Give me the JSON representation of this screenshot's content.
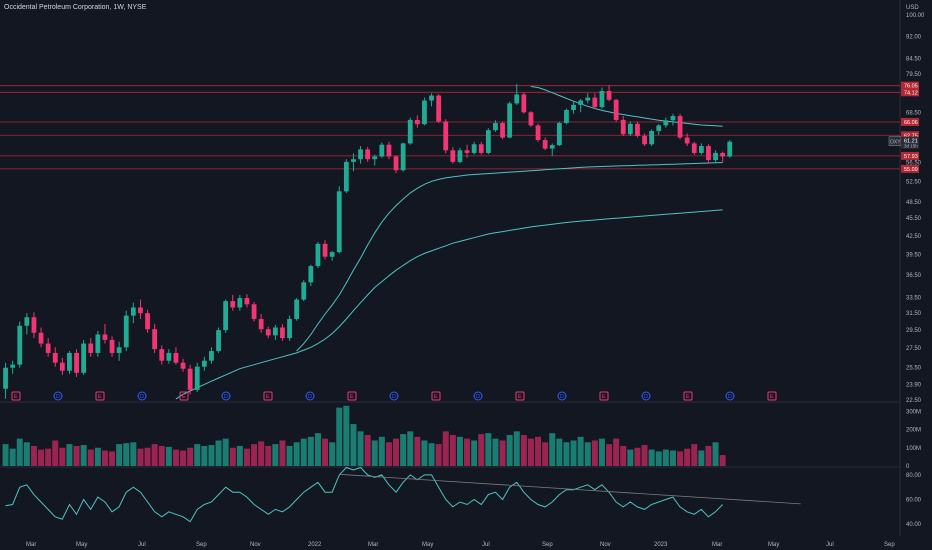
{
  "title": "Occidental Petroleum Corporation, 1W, NYSE",
  "currency": "USD",
  "colors": {
    "bg": "#131722",
    "up": "#22ab94",
    "down": "#f23674",
    "ma": "#4fc3c3",
    "rsi": "#4fc3c3",
    "level": "#b22833",
    "grid": "#1f2430",
    "text": "#b2b5be",
    "trendline": "#787b86"
  },
  "price_ticks": [
    "100.00",
    "92.00",
    "84.50",
    "79.50",
    "68.50",
    "52.50",
    "48.50",
    "45.50",
    "42.50",
    "39.50",
    "36.50",
    "33.50",
    "31.50",
    "29.50",
    "27.50",
    "25.50",
    "23.90",
    "22.50"
  ],
  "price_tags": [
    {
      "value": 76.05,
      "label": "76.05",
      "kind": "level"
    },
    {
      "value": 74.12,
      "label": "74.12",
      "kind": "level"
    },
    {
      "value": 66.06,
      "label": "66.06",
      "kind": "level"
    },
    {
      "value": 62.75,
      "label": "62.75",
      "kind": "level"
    },
    {
      "value": 57.93,
      "label": "57.93",
      "kind": "level"
    },
    {
      "value": 55.09,
      "label": "55.09",
      "kind": "level"
    }
  ],
  "current_price": {
    "symbol": "OXY",
    "price": "61.21",
    "countdown": "3d 15h",
    "value": 61.21,
    "value2": 56.5,
    "label2": "56.50"
  },
  "volume_ticks": [
    "300M",
    "200M",
    "100M",
    "0"
  ],
  "rsi_ticks": [
    "80.00",
    "60.00",
    "40.00"
  ],
  "time_labels": [
    "Mar",
    "May",
    "Jul",
    "Sep",
    "Nov",
    "2022",
    "Mar",
    "May",
    "Jul",
    "Sep",
    "Nov",
    "2023",
    "Mar",
    "May",
    "Jul",
    "Sep"
  ],
  "event_markers": [
    "E",
    "D",
    "E",
    "D",
    "E",
    "D",
    "E",
    "D",
    "E",
    "D",
    "E",
    "D",
    "E",
    "D",
    "E",
    "D",
    "E",
    "D",
    "E"
  ],
  "chart_data": {
    "type": "candlestick",
    "timeframe": "1W",
    "symbol": "OXY",
    "exchange": "NYSE",
    "price_scale": "log",
    "ylim": [
      22.5,
      100
    ],
    "candles": [
      [
        23.5,
        26.0,
        22.6,
        25.5
      ],
      [
        25.5,
        26.2,
        24.9,
        25.8
      ],
      [
        25.8,
        30.5,
        25.5,
        30.0
      ],
      [
        30.0,
        31.5,
        29.0,
        31.0
      ],
      [
        31.0,
        31.6,
        28.6,
        29.2
      ],
      [
        29.2,
        29.8,
        27.6,
        28.0
      ],
      [
        28.0,
        28.6,
        26.6,
        27.0
      ],
      [
        27.0,
        27.6,
        25.6,
        26.0
      ],
      [
        26.0,
        26.5,
        24.8,
        25.2
      ],
      [
        25.2,
        27.2,
        24.9,
        27.0
      ],
      [
        27.0,
        27.4,
        24.6,
        25.0
      ],
      [
        25.0,
        28.4,
        24.8,
        28.0
      ],
      [
        28.0,
        28.6,
        26.6,
        27.0
      ],
      [
        27.0,
        29.4,
        26.6,
        29.0
      ],
      [
        29.0,
        30.2,
        28.0,
        28.4
      ],
      [
        28.4,
        28.8,
        26.6,
        27.0
      ],
      [
        27.0,
        28.2,
        26.2,
        27.6
      ],
      [
        27.6,
        31.8,
        27.2,
        31.2
      ],
      [
        31.2,
        32.8,
        30.3,
        32.2
      ],
      [
        32.2,
        33.2,
        30.8,
        31.5
      ],
      [
        31.5,
        31.9,
        29.2,
        29.6
      ],
      [
        29.6,
        30.2,
        27.0,
        27.4
      ],
      [
        27.4,
        27.8,
        25.8,
        26.2
      ],
      [
        26.2,
        27.4,
        25.9,
        27.0
      ],
      [
        27.0,
        27.6,
        25.8,
        26.0
      ],
      [
        26.0,
        26.4,
        25.1,
        25.4
      ],
      [
        25.4,
        25.8,
        23.0,
        23.4
      ],
      [
        23.4,
        26.0,
        23.2,
        25.6
      ],
      [
        25.6,
        26.6,
        25.2,
        26.2
      ],
      [
        26.2,
        27.6,
        25.9,
        27.2
      ],
      [
        27.2,
        29.8,
        27.0,
        29.5
      ],
      [
        29.5,
        33.2,
        29.2,
        33.0
      ],
      [
        33.0,
        33.8,
        31.8,
        32.2
      ],
      [
        32.2,
        33.8,
        31.8,
        33.4
      ],
      [
        33.4,
        33.9,
        32.2,
        32.6
      ],
      [
        32.6,
        32.9,
        30.5,
        30.8
      ],
      [
        30.8,
        31.4,
        29.2,
        29.6
      ],
      [
        29.6,
        29.9,
        28.6,
        28.9
      ],
      [
        28.9,
        30.1,
        28.4,
        29.8
      ],
      [
        29.8,
        30.2,
        28.3,
        28.6
      ],
      [
        28.6,
        31.2,
        28.3,
        30.8
      ],
      [
        30.8,
        33.4,
        30.6,
        33.2
      ],
      [
        33.2,
        35.8,
        33.0,
        35.5
      ],
      [
        35.5,
        38.0,
        35.0,
        37.8
      ],
      [
        37.8,
        41.5,
        37.5,
        41.2
      ],
      [
        41.2,
        41.8,
        38.8,
        39.2
      ],
      [
        39.2,
        40.1,
        38.6,
        39.9
      ],
      [
        39.9,
        51.5,
        39.7,
        50.5
      ],
      [
        50.5,
        57.2,
        50.2,
        56.6
      ],
      [
        56.6,
        58.5,
        54.6,
        57.2
      ],
      [
        57.2,
        60.2,
        56.2,
        59.4
      ],
      [
        59.4,
        60.0,
        56.6,
        57.2
      ],
      [
        57.2,
        58.2,
        55.8,
        57.8
      ],
      [
        57.8,
        61.0,
        57.5,
        60.5
      ],
      [
        60.5,
        61.2,
        57.2,
        57.8
      ],
      [
        57.8,
        58.1,
        54.2,
        54.8
      ],
      [
        54.8,
        61.0,
        54.5,
        60.8
      ],
      [
        60.8,
        67.2,
        60.5,
        66.6
      ],
      [
        66.6,
        67.8,
        64.6,
        65.5
      ],
      [
        65.5,
        72.6,
        65.2,
        71.8
      ],
      [
        71.8,
        73.8,
        70.2,
        73.2
      ],
      [
        73.2,
        73.6,
        65.8,
        66.2
      ],
      [
        66.2,
        66.8,
        58.5,
        59.2
      ],
      [
        59.2,
        59.9,
        56.2,
        56.6
      ],
      [
        56.6,
        59.8,
        56.3,
        59.2
      ],
      [
        59.2,
        60.5,
        57.5,
        58.6
      ],
      [
        58.6,
        61.2,
        58.2,
        60.6
      ],
      [
        60.6,
        61.2,
        58.2,
        58.6
      ],
      [
        58.6,
        64.5,
        58.3,
        64.0
      ],
      [
        64.0,
        66.5,
        63.6,
        65.8
      ],
      [
        65.8,
        66.2,
        61.8,
        62.2
      ],
      [
        62.2,
        71.5,
        62.0,
        71.0
      ],
      [
        71.0,
        76.5,
        70.6,
        73.5
      ],
      [
        73.5,
        74.1,
        68.2,
        68.6
      ],
      [
        68.6,
        68.9,
        64.8,
        65.2
      ],
      [
        65.2,
        65.6,
        61.2,
        61.6
      ],
      [
        61.6,
        62.2,
        59.2,
        59.6
      ],
      [
        59.6,
        60.8,
        58.0,
        60.4
      ],
      [
        60.4,
        66.2,
        60.2,
        65.8
      ],
      [
        65.8,
        69.6,
        65.5,
        69.2
      ],
      [
        69.2,
        71.5,
        68.2,
        70.6
      ],
      [
        70.6,
        72.2,
        68.6,
        71.8
      ],
      [
        71.8,
        73.8,
        71.0,
        72.6
      ],
      [
        72.6,
        73.8,
        69.5,
        70.0
      ],
      [
        70.0,
        75.5,
        69.6,
        74.5
      ],
      [
        74.5,
        76.2,
        71.6,
        72.0
      ],
      [
        72.0,
        72.2,
        66.2,
        66.6
      ],
      [
        66.6,
        67.6,
        62.6,
        63.0
      ],
      [
        63.0,
        66.2,
        62.6,
        65.6
      ],
      [
        65.6,
        66.2,
        62.2,
        62.6
      ],
      [
        62.6,
        63.2,
        60.2,
        60.6
      ],
      [
        60.6,
        64.2,
        60.2,
        63.8
      ],
      [
        63.8,
        65.6,
        62.8,
        65.2
      ],
      [
        65.2,
        67.2,
        64.6,
        66.5
      ],
      [
        66.5,
        68.2,
        65.2,
        67.6
      ],
      [
        67.6,
        68.2,
        61.8,
        62.2
      ],
      [
        62.2,
        63.2,
        60.2,
        60.8
      ],
      [
        60.8,
        61.2,
        58.2,
        58.6
      ],
      [
        58.6,
        60.8,
        58.2,
        60.2
      ],
      [
        60.2,
        60.6,
        56.2,
        57.0
      ],
      [
        57.0,
        59.2,
        56.6,
        58.6
      ],
      [
        58.6,
        58.9,
        56.5,
        57.8
      ],
      [
        57.8,
        61.6,
        57.5,
        61.21
      ]
    ],
    "volume_millions": [
      120,
      95,
      150,
      130,
      110,
      90,
      95,
      140,
      100,
      120,
      110,
      115,
      90,
      100,
      85,
      80,
      120,
      125,
      130,
      95,
      100,
      120,
      110,
      105,
      90,
      85,
      100,
      120,
      110,
      115,
      140,
      150,
      100,
      110,
      95,
      120,
      135,
      110,
      120,
      140,
      110,
      130,
      150,
      160,
      180,
      150,
      130,
      320,
      330,
      230,
      190,
      170,
      140,
      160,
      130,
      150,
      175,
      190,
      160,
      140,
      125,
      120,
      190,
      170,
      160,
      150,
      140,
      175,
      180,
      150,
      140,
      170,
      190,
      170,
      150,
      160,
      130,
      180,
      150,
      130,
      140,
      160,
      130,
      140,
      150,
      120,
      150,
      110,
      90,
      100,
      115,
      90,
      80,
      90,
      85,
      80,
      95,
      120,
      85,
      110,
      130,
      60
    ],
    "sma_a": [
      null,
      null,
      null,
      null,
      null,
      null,
      null,
      null,
      null,
      null,
      null,
      null,
      null,
      null,
      null,
      null,
      null,
      null,
      null,
      null,
      null,
      null,
      null,
      null,
      null,
      null,
      null,
      null,
      null,
      null,
      null,
      null,
      null,
      null,
      null,
      null,
      null,
      null,
      null,
      null,
      null,
      27.2,
      28.0,
      29.0,
      30.2,
      31.4,
      32.5,
      33.8,
      35.4,
      37.2,
      39.0,
      41.0,
      43.0,
      44.8,
      46.4,
      47.8,
      49.0,
      50.2,
      51.1,
      51.9,
      52.5,
      52.9,
      53.2,
      53.4,
      53.6,
      53.8,
      53.9,
      54.0,
      54.1,
      54.2,
      54.3,
      54.4,
      54.5,
      54.6,
      54.7,
      54.8,
      54.9,
      55.0,
      55.1,
      55.2,
      55.3,
      55.4,
      55.5,
      55.55,
      55.6,
      55.65,
      55.7,
      55.75,
      55.8,
      55.85,
      55.9,
      55.95,
      56.0,
      56.05,
      56.1,
      56.15,
      56.2,
      56.25,
      56.3,
      56.35,
      56.4,
      56.45
    ],
    "sma_b": [
      null,
      null,
      null,
      null,
      null,
      null,
      null,
      null,
      null,
      null,
      null,
      null,
      null,
      null,
      null,
      null,
      null,
      null,
      null,
      null,
      null,
      null,
      null,
      null,
      null,
      null,
      null,
      null,
      null,
      null,
      null,
      null,
      null,
      null,
      null,
      null,
      null,
      null,
      null,
      null,
      null,
      null,
      null,
      null,
      null,
      null,
      null,
      null,
      null,
      null,
      null,
      null,
      null,
      null,
      null,
      null,
      null,
      null,
      null,
      null,
      null,
      null,
      null,
      null,
      null,
      null,
      null,
      null,
      null,
      null,
      null,
      null,
      null,
      null,
      75.8,
      75.5,
      74.8,
      74.0,
      73.2,
      72.4,
      71.6,
      70.9,
      70.2,
      69.6,
      69.1,
      68.7,
      68.3,
      68.0,
      67.7,
      67.4,
      67.1,
      66.8,
      66.5,
      66.3,
      66.1,
      65.9,
      65.7,
      65.5,
      65.3,
      65.2,
      65.1,
      65.0
    ],
    "sma_c": [
      null,
      null,
      null,
      null,
      null,
      null,
      null,
      null,
      null,
      null,
      null,
      null,
      null,
      null,
      null,
      null,
      null,
      null,
      null,
      null,
      null,
      null,
      null,
      null,
      22.6,
      23.0,
      23.3,
      23.6,
      23.9,
      24.2,
      24.5,
      24.8,
      25.1,
      25.4,
      25.6,
      25.8,
      26.0,
      26.2,
      26.4,
      26.6,
      26.8,
      27.0,
      27.3,
      27.6,
      28.0,
      28.5,
      29.1,
      29.9,
      30.8,
      31.8,
      32.8,
      33.8,
      34.8,
      35.6,
      36.4,
      37.2,
      37.9,
      38.6,
      39.2,
      39.7,
      40.1,
      40.5,
      40.9,
      41.3,
      41.6,
      41.9,
      42.2,
      42.5,
      42.8,
      43.0,
      43.2,
      43.4,
      43.6,
      43.8,
      44.0,
      44.15,
      44.3,
      44.45,
      44.6,
      44.75,
      44.9,
      45.0,
      45.1,
      45.2,
      45.3,
      45.4,
      45.5,
      45.6,
      45.7,
      45.8,
      45.9,
      46.0,
      46.1,
      46.2,
      46.3,
      46.4,
      46.5,
      46.6,
      46.7,
      46.8,
      46.9,
      47.0
    ],
    "rsi": [
      55,
      56,
      70,
      72,
      64,
      58,
      52,
      46,
      44,
      56,
      48,
      60,
      52,
      62,
      58,
      50,
      54,
      66,
      70,
      66,
      58,
      50,
      46,
      50,
      48,
      46,
      42,
      52,
      56,
      58,
      64,
      70,
      66,
      66,
      62,
      56,
      52,
      48,
      52,
      50,
      54,
      60,
      66,
      70,
      74,
      66,
      66,
      80,
      86,
      84,
      86,
      80,
      78,
      80,
      72,
      66,
      74,
      80,
      76,
      80,
      80,
      70,
      60,
      54,
      58,
      56,
      60,
      56,
      64,
      66,
      60,
      70,
      74,
      66,
      60,
      56,
      54,
      58,
      64,
      68,
      68,
      70,
      72,
      68,
      72,
      66,
      58,
      54,
      58,
      54,
      52,
      56,
      58,
      60,
      62,
      54,
      50,
      48,
      52,
      46,
      50,
      56
    ],
    "trendline_rsi": [
      [
        47,
        80.5
      ],
      [
        112,
        56.5
      ]
    ],
    "rsi_ylim": [
      32,
      84
    ],
    "volume_ylim": [
      0,
      340
    ]
  }
}
